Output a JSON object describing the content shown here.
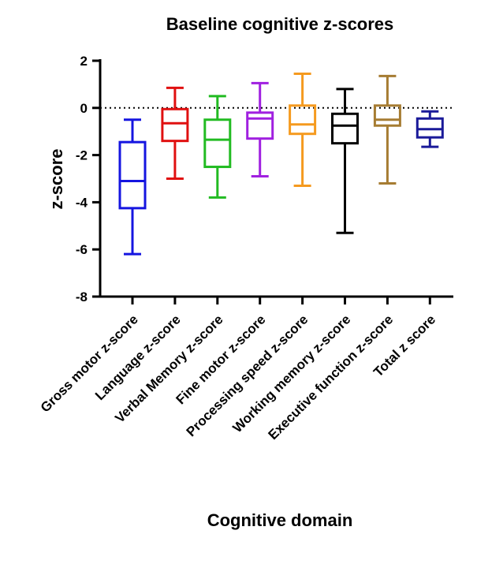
{
  "chart_data": {
    "type": "boxplot",
    "title": "Baseline cognitive z-scores",
    "xlabel": "Cognitive domain",
    "ylabel": "z-score",
    "ylim": [
      -8,
      2
    ],
    "yticks": [
      2,
      0,
      -2,
      -4,
      -6,
      -8
    ],
    "yticks_text": [
      "2",
      "0",
      "-2",
      "-4",
      "-6",
      "-8"
    ],
    "reference_line": 0,
    "series": [
      {
        "name": "Gross motor z-score",
        "color": "#1515e0",
        "min": -6.2,
        "q1": -4.25,
        "median": -3.1,
        "q3": -1.45,
        "max": -0.5
      },
      {
        "name": "Language z-score",
        "color": "#e01010",
        "min": -3.0,
        "q1": -1.4,
        "median": -0.65,
        "q3": -0.05,
        "max": 0.85
      },
      {
        "name": "Verbal Memory z-score",
        "color": "#22bb22",
        "min": -3.8,
        "q1": -2.5,
        "median": -1.35,
        "q3": -0.5,
        "max": 0.5
      },
      {
        "name": "Fine motor z-score",
        "color": "#a020e0",
        "min": -2.9,
        "q1": -1.3,
        "median": -0.45,
        "q3": -0.2,
        "max": 1.05
      },
      {
        "name": "Processing speed z-score",
        "color": "#f59a1f",
        "min": -3.3,
        "q1": -1.1,
        "median": -0.7,
        "q3": 0.1,
        "max": 1.45
      },
      {
        "name": "Working memory z-score",
        "color": "#000000",
        "min": -5.3,
        "q1": -1.5,
        "median": -0.75,
        "q3": -0.25,
        "max": 0.8
      },
      {
        "name": "Executive function z-score",
        "color": "#a67c32",
        "min": -3.2,
        "q1": -0.75,
        "median": -0.5,
        "q3": 0.1,
        "max": 1.35
      },
      {
        "name": "Total z score",
        "color": "#1a1a99",
        "min": -1.65,
        "q1": -1.25,
        "median": -0.9,
        "q3": -0.45,
        "max": -0.15
      }
    ]
  }
}
